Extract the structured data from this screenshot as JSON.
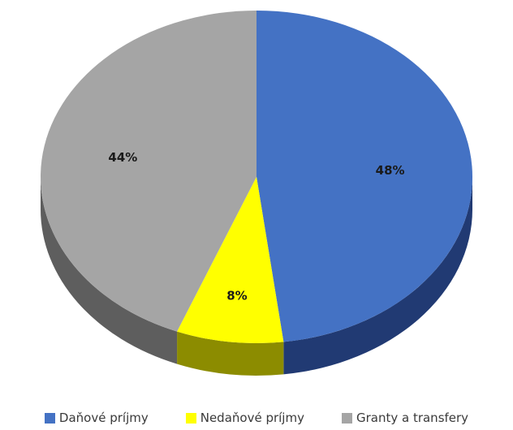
{
  "chart_data": {
    "type": "pie",
    "title": "",
    "categories": [
      "Daňové príjmy",
      "Nedaňové príjmy",
      "Granty a transfery"
    ],
    "values": [
      48,
      8,
      44
    ],
    "value_labels": [
      "48%",
      "8%",
      "44%"
    ],
    "colors": [
      "#4472c4",
      "#ffff00",
      "#a5a5a5"
    ],
    "side_colors": [
      "#213a73",
      "#8c8c00",
      "#5e5e5e"
    ],
    "style": "3d",
    "legend": {
      "position": "bottom"
    }
  }
}
